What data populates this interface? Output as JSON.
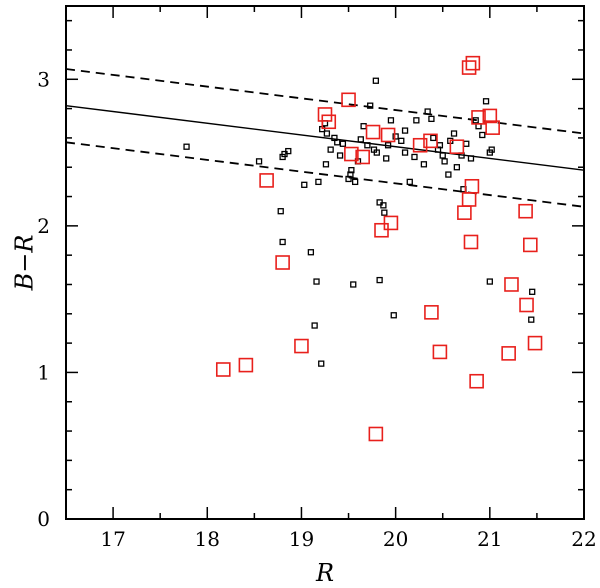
{
  "chart_data": {
    "type": "scatter",
    "xlabel": "R",
    "ylabel": "B−R",
    "xlim": [
      16.5,
      22
    ],
    "ylim": [
      0,
      3.5
    ],
    "x_ticks": [
      "17",
      "18",
      "19",
      "20",
      "21",
      "22"
    ],
    "y_ticks": [
      "0",
      "1",
      "2",
      "3"
    ],
    "grid": false,
    "lines": [
      {
        "style": "solid",
        "x": [
          16.5,
          22
        ],
        "y": [
          2.82,
          2.38
        ]
      },
      {
        "style": "dashed",
        "x": [
          16.5,
          22
        ],
        "y": [
          3.07,
          2.63
        ]
      },
      {
        "style": "dashed",
        "x": [
          16.5,
          22
        ],
        "y": [
          2.57,
          2.13
        ]
      }
    ],
    "series": [
      {
        "marker": "small-square",
        "color": "#000000",
        "points": [
          [
            17.78,
            2.54
          ],
          [
            18.55,
            2.44
          ],
          [
            18.8,
            2.47
          ],
          [
            18.82,
            2.49
          ],
          [
            18.86,
            2.51
          ],
          [
            18.78,
            2.1
          ],
          [
            18.8,
            1.89
          ],
          [
            19.03,
            2.28
          ],
          [
            19.1,
            1.82
          ],
          [
            19.16,
            1.62
          ],
          [
            19.14,
            1.32
          ],
          [
            19.21,
            1.06
          ],
          [
            19.18,
            2.3
          ],
          [
            19.22,
            2.66
          ],
          [
            19.25,
            2.7
          ],
          [
            19.27,
            2.63
          ],
          [
            19.26,
            2.42
          ],
          [
            19.31,
            2.52
          ],
          [
            19.35,
            2.6
          ],
          [
            19.38,
            2.57
          ],
          [
            19.41,
            2.48
          ],
          [
            19.44,
            2.56
          ],
          [
            19.5,
            2.32
          ],
          [
            19.53,
            2.38
          ],
          [
            19.55,
            1.6
          ],
          [
            19.57,
            2.3
          ],
          [
            19.6,
            2.44
          ],
          [
            19.63,
            2.59
          ],
          [
            19.66,
            2.68
          ],
          [
            19.7,
            2.55
          ],
          [
            19.73,
            2.82
          ],
          [
            19.77,
            2.52
          ],
          [
            19.79,
            2.99
          ],
          [
            19.8,
            2.5
          ],
          [
            19.83,
            2.16
          ],
          [
            19.87,
            2.14
          ],
          [
            19.83,
            1.63
          ],
          [
            19.88,
            2.09
          ],
          [
            19.92,
            2.55
          ],
          [
            19.95,
            2.72
          ],
          [
            19.98,
            1.39
          ],
          [
            20.0,
            2.61
          ],
          [
            20.06,
            2.58
          ],
          [
            20.1,
            2.5
          ],
          [
            20.15,
            2.3
          ],
          [
            20.2,
            2.47
          ],
          [
            20.22,
            2.72
          ],
          [
            20.3,
            2.42
          ],
          [
            20.34,
            2.78
          ],
          [
            20.38,
            2.73
          ],
          [
            20.4,
            2.6
          ],
          [
            20.45,
            2.52
          ],
          [
            20.47,
            2.55
          ],
          [
            20.5,
            2.48
          ],
          [
            20.52,
            2.44
          ],
          [
            20.56,
            2.35
          ],
          [
            20.58,
            2.58
          ],
          [
            20.62,
            2.63
          ],
          [
            20.65,
            2.4
          ],
          [
            20.7,
            2.48
          ],
          [
            20.72,
            2.25
          ],
          [
            20.75,
            2.56
          ],
          [
            20.8,
            2.46
          ],
          [
            20.85,
            2.72
          ],
          [
            20.88,
            2.68
          ],
          [
            20.92,
            2.62
          ],
          [
            20.96,
            2.85
          ],
          [
            21.0,
            2.5
          ],
          [
            21.0,
            1.62
          ],
          [
            21.02,
            2.52
          ],
          [
            21.45,
            1.55
          ],
          [
            21.44,
            1.36
          ],
          [
            19.52,
            2.35
          ],
          [
            19.9,
            2.46
          ],
          [
            20.1,
            2.65
          ]
        ]
      },
      {
        "marker": "large-square",
        "color": "#e8201c",
        "points": [
          [
            18.17,
            1.02
          ],
          [
            18.41,
            1.05
          ],
          [
            18.63,
            2.31
          ],
          [
            18.8,
            1.75
          ],
          [
            19.0,
            1.18
          ],
          [
            19.25,
            2.76
          ],
          [
            19.29,
            2.71
          ],
          [
            19.5,
            2.86
          ],
          [
            19.53,
            2.49
          ],
          [
            19.65,
            2.47
          ],
          [
            19.76,
            2.64
          ],
          [
            19.79,
            0.58
          ],
          [
            19.85,
            1.97
          ],
          [
            19.92,
            2.62
          ],
          [
            19.95,
            2.02
          ],
          [
            20.26,
            2.55
          ],
          [
            20.37,
            2.58
          ],
          [
            20.38,
            1.41
          ],
          [
            20.47,
            1.14
          ],
          [
            20.65,
            2.54
          ],
          [
            20.73,
            2.09
          ],
          [
            20.78,
            3.08
          ],
          [
            20.82,
            3.11
          ],
          [
            20.78,
            2.18
          ],
          [
            20.81,
            2.27
          ],
          [
            20.8,
            1.89
          ],
          [
            20.86,
            0.94
          ],
          [
            20.88,
            2.74
          ],
          [
            21.0,
            2.75
          ],
          [
            21.03,
            2.67
          ],
          [
            21.2,
            1.13
          ],
          [
            21.23,
            1.6
          ],
          [
            21.38,
            2.1
          ],
          [
            21.39,
            1.46
          ],
          [
            21.43,
            1.87
          ],
          [
            21.48,
            1.2
          ]
        ]
      }
    ]
  }
}
